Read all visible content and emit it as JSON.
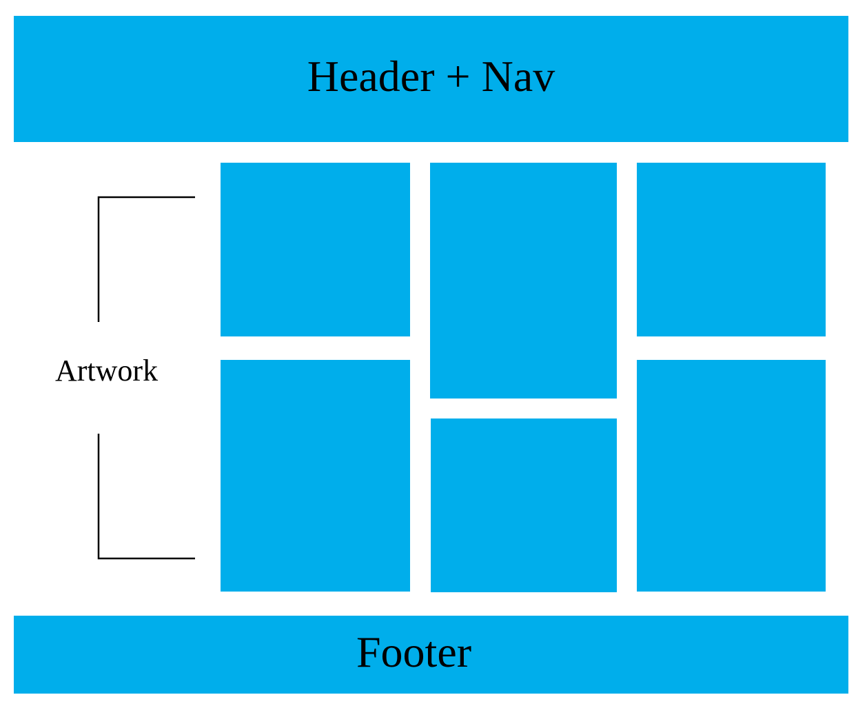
{
  "header": {
    "title": "Header + Nav"
  },
  "gallery": {
    "label": "Artwork",
    "tiles": 6
  },
  "footer": {
    "title": "Footer"
  },
  "colors": {
    "block": "#00aeeb",
    "background": "#ffffff",
    "text": "#000000"
  }
}
